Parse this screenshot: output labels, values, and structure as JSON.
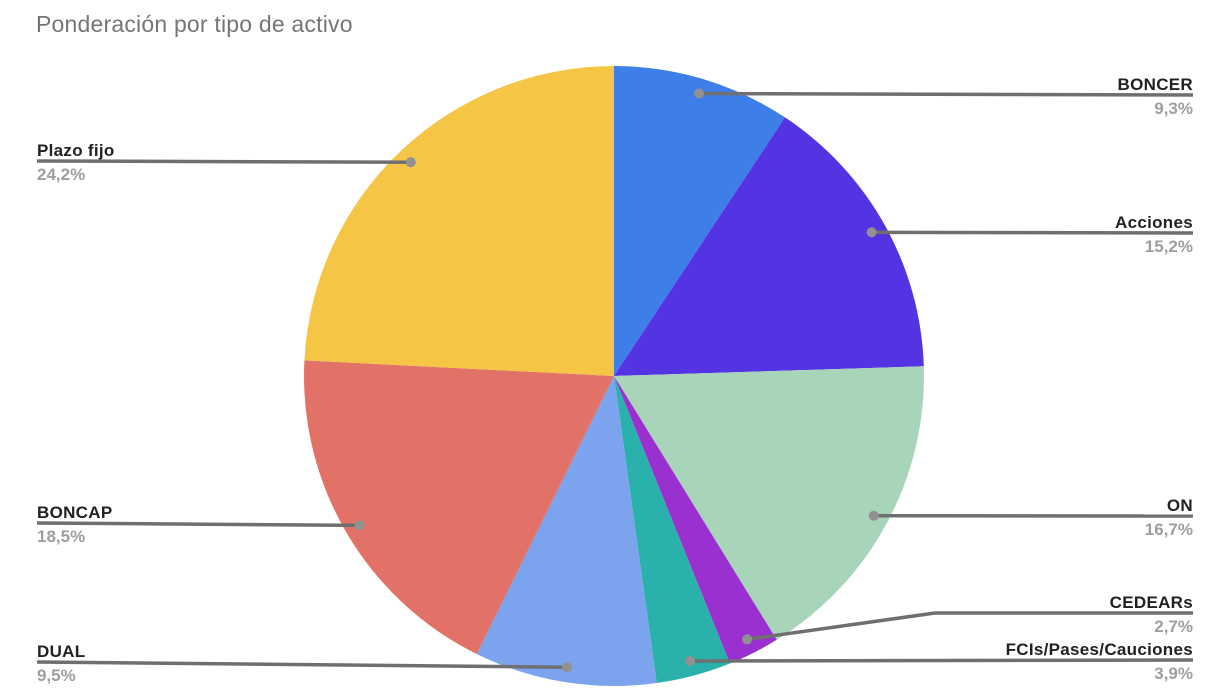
{
  "title": "Ponderación por tipo de activo",
  "chart_data": {
    "type": "pie",
    "title": "Ponderación por tipo de activo",
    "unit": "%",
    "direction": "clockwise",
    "start_angle_deg": 0,
    "legend": "none",
    "background": "#FFFFFF",
    "title_color": "#757575",
    "label_color": "#212121",
    "pct_color": "#9E9E9E",
    "leader_line_color": "#6F6F6F",
    "leader_dot_color": "#919191",
    "slices": [
      {
        "label": "BONCER",
        "value": 9.3,
        "pct_label": "9,3%",
        "color": "#3E7EE8"
      },
      {
        "label": "Acciones",
        "value": 15.2,
        "pct_label": "15,2%",
        "color": "#5433E3"
      },
      {
        "label": "ON",
        "value": 16.7,
        "pct_label": "16,7%",
        "color": "#A8D4B9"
      },
      {
        "label": "CEDEARs",
        "value": 2.7,
        "pct_label": "2,7%",
        "color": "#9B30D0"
      },
      {
        "label": "FCIs/Pases/Cauciones",
        "value": 3.9,
        "pct_label": "3,9%",
        "color": "#2BB1AB"
      },
      {
        "label": "DUAL",
        "value": 9.5,
        "pct_label": "9,5%",
        "color": "#7CA3ED"
      },
      {
        "label": "BONCAP",
        "value": 18.5,
        "pct_label": "18,5%",
        "color": "#E27167"
      },
      {
        "label": "Plazo fijo",
        "value": 24.2,
        "pct_label": "24,2%",
        "color": "#F5C646"
      }
    ]
  }
}
